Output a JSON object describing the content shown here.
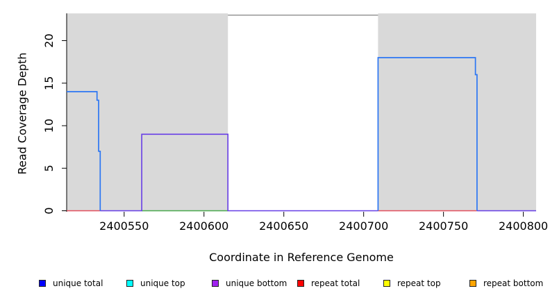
{
  "chart_data": {
    "type": "line",
    "title": "",
    "xlabel": "Coordinate in Reference Genome",
    "ylabel": "Read Coverage Depth",
    "xlim": [
      2400514,
      2400808
    ],
    "ylim": [
      0,
      23.2
    ],
    "x_ticks": [
      "2400550",
      "2400600",
      "2400650",
      "2400700",
      "2400750",
      "2400800"
    ],
    "x_tick_values": [
      2400550,
      2400600,
      2400650,
      2400700,
      2400750,
      2400800
    ],
    "y_ticks": [
      "0",
      "5",
      "10",
      "15",
      "20"
    ],
    "y_tick_values": [
      0,
      5,
      10,
      15,
      20
    ],
    "grid": false,
    "plot_background": "#ffffff",
    "shading_color": "#d9d9d9",
    "background_regions": [
      {
        "name": "left-shaded-region",
        "x0": 2400514,
        "x1": 2400615
      },
      {
        "name": "right-shaded-region",
        "x0": 2400709,
        "x1": 2400808
      }
    ],
    "series": [
      {
        "name": "clipped-total-coverage",
        "color": "#8c8c8c",
        "width": 1.4,
        "paths": [
          [
            [
              2400615,
              23
            ],
            [
              2400709,
              23
            ]
          ]
        ]
      },
      {
        "name": "green-baseline",
        "color": "#49a94c",
        "width": 1.6,
        "paths": [
          [
            [
              2400561,
              0
            ],
            [
              2400615,
              0
            ]
          ]
        ]
      },
      {
        "name": "repeat-total",
        "color": "#e34f5e",
        "width": 1.6,
        "paths": [
          [
            [
              2400514,
              0
            ],
            [
              2400535,
              0
            ]
          ],
          [
            [
              2400709,
              0
            ],
            [
              2400771,
              0
            ]
          ]
        ]
      },
      {
        "name": "unique-bottom",
        "color": "#663de6",
        "width": 1.6,
        "paths": [
          [
            [
              2400535,
              0
            ],
            [
              2400561,
              0
            ],
            [
              2400561,
              9
            ],
            [
              2400615,
              9
            ],
            [
              2400615,
              0
            ],
            [
              2400709,
              0
            ]
          ],
          [
            [
              2400771,
              0
            ],
            [
              2400808,
              0
            ]
          ]
        ]
      },
      {
        "name": "unique-total",
        "color": "#2b76f3",
        "width": 1.7,
        "paths": [
          [
            [
              2400514,
              14
            ],
            [
              2400533,
              14
            ],
            [
              2400533,
              13
            ],
            [
              2400534,
              13
            ],
            [
              2400534,
              7
            ],
            [
              2400535,
              7
            ],
            [
              2400535,
              0
            ]
          ],
          [
            [
              2400709,
              0
            ],
            [
              2400709,
              18
            ],
            [
              2400770,
              18
            ],
            [
              2400770,
              16
            ],
            [
              2400771,
              16
            ],
            [
              2400771,
              0
            ]
          ]
        ]
      }
    ],
    "legend_position": "bottom",
    "legend": [
      {
        "label": "unique total",
        "color": "#0000ff"
      },
      {
        "label": "unique top",
        "color": "#00ffff"
      },
      {
        "label": "unique bottom",
        "color": "#a020f0"
      },
      {
        "label": "repeat total",
        "color": "#ff0000"
      },
      {
        "label": "repeat top",
        "color": "#ffff00"
      },
      {
        "label": "repeat bottom",
        "color": "#ffa500"
      }
    ]
  }
}
